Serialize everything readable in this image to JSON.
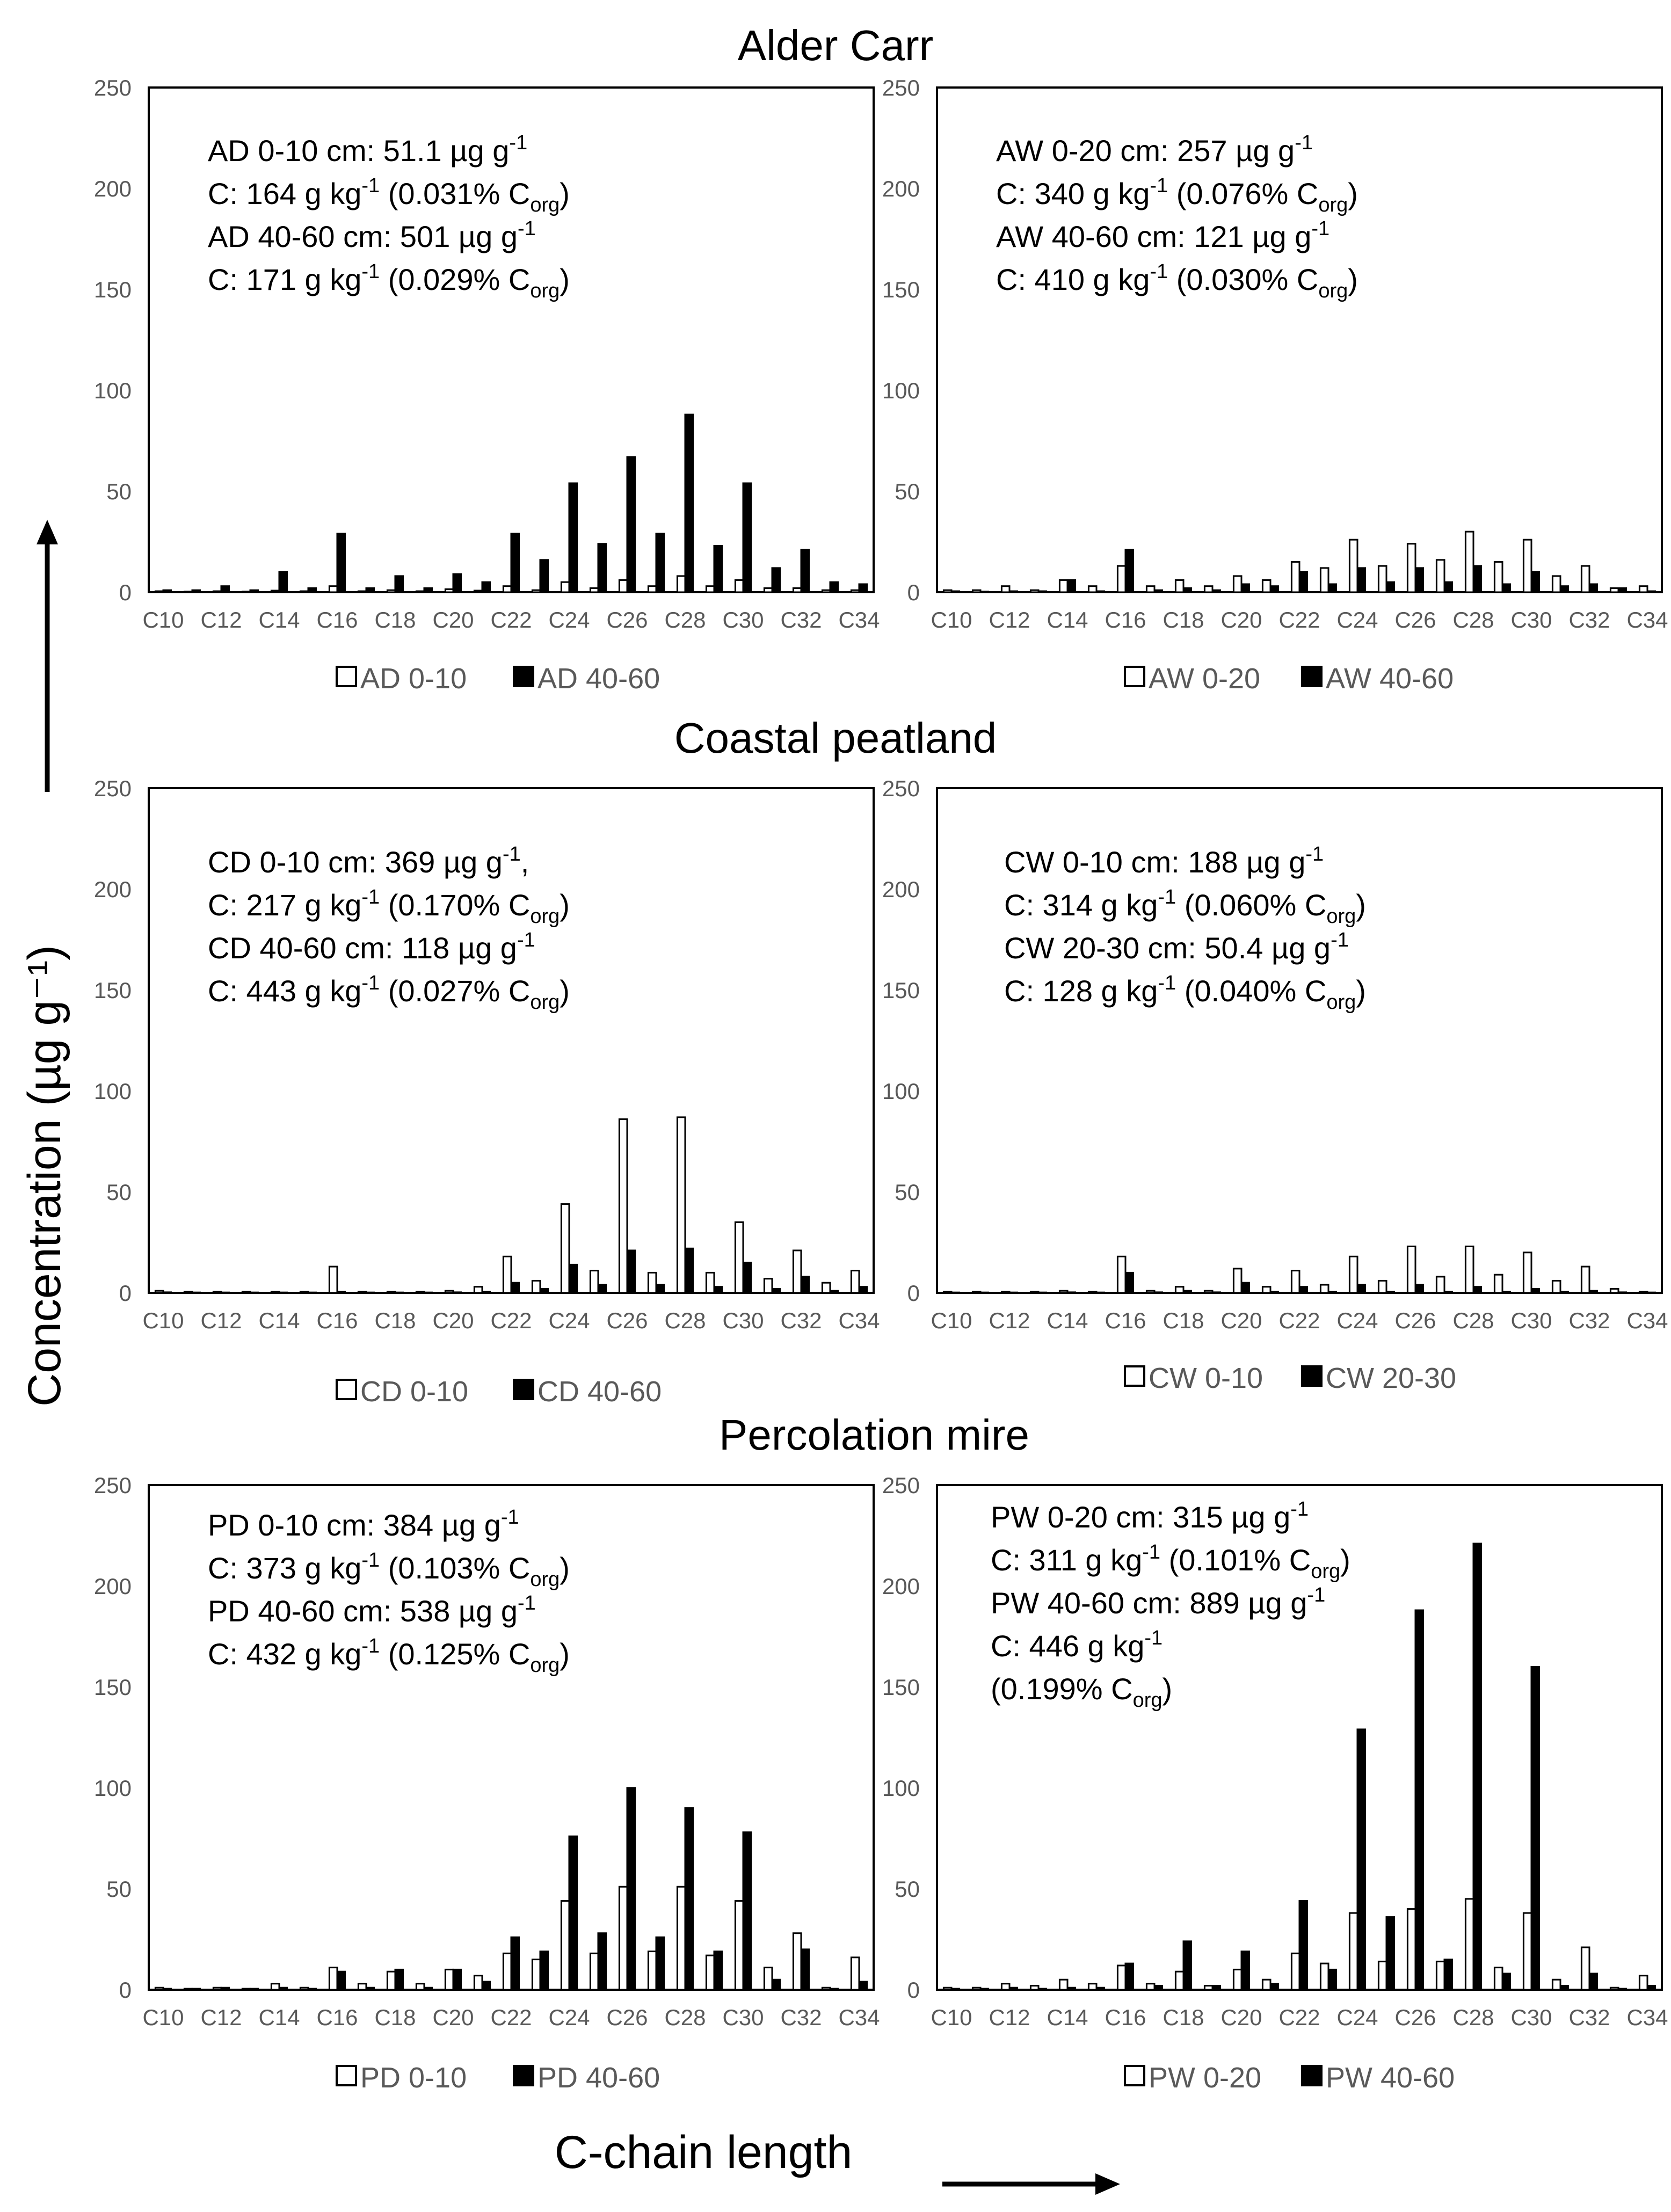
{
  "figure": {
    "section_titles": [
      "Alder Carr",
      "Coastal peatland",
      "Percolation mire"
    ],
    "ylabel": "Concentration (µg g⁻¹)",
    "xlabel": "C-chain length"
  },
  "chart_data": [
    {
      "type": "bar",
      "panel": "AD",
      "section": "Alder Carr",
      "categories": [
        "C10",
        "C11",
        "C12",
        "C13",
        "C14",
        "C15",
        "C16",
        "C17",
        "C18",
        "C19",
        "C20",
        "C21",
        "C22",
        "C23",
        "C24",
        "C25",
        "C26",
        "C27",
        "C28",
        "C29",
        "C30",
        "C31",
        "C32",
        "C33",
        "C34"
      ],
      "tick_labels": [
        "C10",
        "C12",
        "C14",
        "C16",
        "C18",
        "C20",
        "C22",
        "C24",
        "C26",
        "C28",
        "C30",
        "C32",
        "C34"
      ],
      "ylim": [
        0,
        250
      ],
      "yticks": [
        0,
        50,
        100,
        150,
        200,
        250
      ],
      "series": [
        {
          "name": "AD 0-10",
          "style": "open",
          "values": [
            0.5,
            0.3,
            0.5,
            0.3,
            0.8,
            0.5,
            3,
            0.5,
            1,
            0.5,
            1.5,
            0.8,
            3,
            1,
            5,
            2,
            6,
            3,
            8,
            3,
            6,
            2,
            2,
            1,
            1
          ]
        },
        {
          "name": "AD 40-60",
          "style": "filled",
          "values": [
            1,
            1,
            3,
            1,
            10,
            2,
            29,
            2,
            8,
            2,
            9,
            5,
            29,
            16,
            54,
            24,
            67,
            29,
            88,
            23,
            54,
            12,
            21,
            5,
            4
          ]
        }
      ],
      "annotation": [
        {
          "text": "AD 0-10 cm: 51.1 µg g",
          "sup": "-1"
        },
        {
          "text": "C: 164 g kg",
          "sup": "-1",
          "rest": " (0.031% C",
          "sub": "org",
          "end": ")"
        },
        {
          "text": "AD 40-60 cm: 501 µg g",
          "sup": "-1"
        },
        {
          "text": "C: 171 g kg",
          "sup": "-1",
          "rest": " (0.029% C",
          "sub": "org",
          "end": ")"
        }
      ]
    },
    {
      "type": "bar",
      "panel": "AW",
      "section": "Alder Carr",
      "categories": [
        "C10",
        "C11",
        "C12",
        "C13",
        "C14",
        "C15",
        "C16",
        "C17",
        "C18",
        "C19",
        "C20",
        "C21",
        "C22",
        "C23",
        "C24",
        "C25",
        "C26",
        "C27",
        "C28",
        "C29",
        "C30",
        "C31",
        "C32",
        "C33",
        "C34"
      ],
      "tick_labels": [
        "C10",
        "C12",
        "C14",
        "C16",
        "C18",
        "C20",
        "C22",
        "C24",
        "C26",
        "C28",
        "C30",
        "C32",
        "C34"
      ],
      "ylim": [
        0,
        250
      ],
      "yticks": [
        0,
        50,
        100,
        150,
        200,
        250
      ],
      "series": [
        {
          "name": "AW 0-20",
          "style": "open",
          "values": [
            1,
            1,
            3,
            1,
            6,
            3,
            13,
            3,
            6,
            3,
            8,
            6,
            15,
            12,
            26,
            13,
            24,
            16,
            30,
            15,
            26,
            8,
            13,
            2,
            3
          ]
        },
        {
          "name": "AW 40-60",
          "style": "filled",
          "values": [
            0.5,
            0.3,
            0.5,
            0.5,
            6,
            0.5,
            21,
            1,
            2,
            1,
            4,
            3,
            10,
            4,
            12,
            5,
            12,
            5,
            13,
            4,
            10,
            3,
            4,
            2,
            0.5
          ]
        }
      ],
      "annotation": [
        {
          "text": "AW 0-20 cm: 257 µg g",
          "sup": "-1"
        },
        {
          "text": "C: 340 g kg",
          "sup": "-1",
          "rest": " (0.076% C",
          "sub": "org",
          "end": ")"
        },
        {
          "text": "AW 40-60 cm: 121 µg g",
          "sup": "-1"
        },
        {
          "text": "C: 410 g kg",
          "sup": "-1",
          "rest": " (0.030% C",
          "sub": "org",
          "end": ")"
        }
      ]
    },
    {
      "type": "bar",
      "panel": "CD",
      "section": "Coastal peatland",
      "categories": [
        "C10",
        "C11",
        "C12",
        "C13",
        "C14",
        "C15",
        "C16",
        "C17",
        "C18",
        "C19",
        "C20",
        "C21",
        "C22",
        "C23",
        "C24",
        "C25",
        "C26",
        "C27",
        "C28",
        "C29",
        "C30",
        "C31",
        "C32",
        "C33",
        "C34"
      ],
      "tick_labels": [
        "C10",
        "C12",
        "C14",
        "C16",
        "C18",
        "C20",
        "C22",
        "C24",
        "C26",
        "C28",
        "C30",
        "C32",
        "C34"
      ],
      "ylim": [
        0,
        250
      ],
      "yticks": [
        0,
        50,
        100,
        150,
        200,
        250
      ],
      "series": [
        {
          "name": "CD 0-10",
          "style": "open",
          "values": [
            1,
            0.5,
            0.5,
            0.5,
            0.5,
            0.5,
            13,
            0.5,
            0.5,
            0.5,
            1,
            3,
            18,
            6,
            44,
            11,
            86,
            10,
            87,
            10,
            35,
            7,
            21,
            5,
            11
          ]
        },
        {
          "name": "CD 40-60",
          "style": "filled",
          "values": [
            0.3,
            0.2,
            0.2,
            0.2,
            0.2,
            0.2,
            0.5,
            0.2,
            0.2,
            0.2,
            0.3,
            0.5,
            5,
            2,
            14,
            4,
            21,
            4,
            22,
            3,
            15,
            2,
            8,
            1,
            3
          ]
        }
      ],
      "annotation": [
        {
          "text": "CD 0-10 cm: 369 µg g",
          "sup": "-1",
          "rest": ","
        },
        {
          "text": "C: 217 g kg",
          "sup": "-1",
          "rest": " (0.170% C",
          "sub": "org",
          "end": ")"
        },
        {
          "text": "CD 40-60 cm: 118 µg g",
          "sup": "-1"
        },
        {
          "text": "C: 443 g kg",
          "sup": "-1",
          "rest": " (0.027% C",
          "sub": "org",
          "end": ")"
        }
      ]
    },
    {
      "type": "bar",
      "panel": "CW",
      "section": "Coastal peatland",
      "categories": [
        "C10",
        "C11",
        "C12",
        "C13",
        "C14",
        "C15",
        "C16",
        "C17",
        "C18",
        "C19",
        "C20",
        "C21",
        "C22",
        "C23",
        "C24",
        "C25",
        "C26",
        "C27",
        "C28",
        "C29",
        "C30",
        "C31",
        "C32",
        "C33",
        "C34"
      ],
      "tick_labels": [
        "C10",
        "C12",
        "C14",
        "C16",
        "C18",
        "C20",
        "C22",
        "C24",
        "C26",
        "C28",
        "C30",
        "C32",
        "C34"
      ],
      "ylim": [
        0,
        250
      ],
      "yticks": [
        0,
        50,
        100,
        150,
        200,
        250
      ],
      "series": [
        {
          "name": "CW 0-10",
          "style": "open",
          "values": [
            0.5,
            0.5,
            0.5,
            0.5,
            1,
            0.5,
            18,
            1,
            3,
            1,
            12,
            3,
            11,
            4,
            18,
            6,
            23,
            8,
            23,
            9,
            20,
            6,
            13,
            2,
            0.5
          ]
        },
        {
          "name": "CW 20-30",
          "style": "filled",
          "values": [
            0.2,
            0.2,
            0.2,
            0.2,
            0.3,
            0.2,
            10,
            0.3,
            1,
            0.3,
            5,
            0.5,
            3,
            0.5,
            4,
            0.5,
            4,
            0.5,
            3,
            0.5,
            2,
            0.5,
            1,
            0.3,
            0.2
          ]
        }
      ],
      "annotation": [
        {
          "text": "CW 0-10 cm: 188 µg g",
          "sup": "-1"
        },
        {
          "text": "C: 314 g kg",
          "sup": "-1",
          "rest": " (0.060% C",
          "sub": "org",
          "end": ")"
        },
        {
          "text": "CW 20-30 cm: 50.4 µg g",
          "sup": "-1"
        },
        {
          "text": "C: 128 g kg",
          "sup": "-1",
          "rest": " (0.040% C",
          "sub": "org",
          "end": ")"
        }
      ]
    },
    {
      "type": "bar",
      "panel": "PD",
      "section": "Percolation mire",
      "categories": [
        "C10",
        "C11",
        "C12",
        "C13",
        "C14",
        "C15",
        "C16",
        "C17",
        "C18",
        "C19",
        "C20",
        "C21",
        "C22",
        "C23",
        "C24",
        "C25",
        "C26",
        "C27",
        "C28",
        "C29",
        "C30",
        "C31",
        "C32",
        "C33",
        "C34"
      ],
      "tick_labels": [
        "C10",
        "C12",
        "C14",
        "C16",
        "C18",
        "C20",
        "C22",
        "C24",
        "C26",
        "C28",
        "C30",
        "C32",
        "C34"
      ],
      "ylim": [
        0,
        250
      ],
      "yticks": [
        0,
        50,
        100,
        150,
        200,
        250
      ],
      "series": [
        {
          "name": "PD 0-10",
          "style": "open",
          "values": [
            1,
            0.5,
            1,
            0.5,
            3,
            1,
            11,
            3,
            9,
            3,
            10,
            7,
            18,
            15,
            44,
            18,
            51,
            19,
            51,
            17,
            44,
            11,
            28,
            1,
            16
          ]
        },
        {
          "name": "PD 40-60",
          "style": "filled",
          "values": [
            0.5,
            0.5,
            1,
            0.5,
            1,
            0.5,
            9,
            1,
            10,
            1,
            10,
            4,
            26,
            19,
            76,
            28,
            100,
            26,
            90,
            19,
            78,
            5,
            20,
            0.5,
            4
          ]
        }
      ],
      "annotation": [
        {
          "text": "PD 0-10 cm: 384 µg g",
          "sup": "-1"
        },
        {
          "text": "C: 373 g kg",
          "sup": "-1",
          "rest": " (0.103% C",
          "sub": "org",
          "end": ")"
        },
        {
          "text": "PD 40-60 cm: 538 µg g",
          "sup": "-1"
        },
        {
          "text": "C: 432 g kg",
          "sup": "-1",
          "rest": " (0.125% C",
          "sub": "org",
          "end": ")"
        }
      ]
    },
    {
      "type": "bar",
      "panel": "PW",
      "section": "Percolation mire",
      "categories": [
        "C10",
        "C11",
        "C12",
        "C13",
        "C14",
        "C15",
        "C16",
        "C17",
        "C18",
        "C19",
        "C20",
        "C21",
        "C22",
        "C23",
        "C24",
        "C25",
        "C26",
        "C27",
        "C28",
        "C29",
        "C30",
        "C31",
        "C32",
        "C33",
        "C34"
      ],
      "tick_labels": [
        "C10",
        "C12",
        "C14",
        "C16",
        "C18",
        "C20",
        "C22",
        "C24",
        "C26",
        "C28",
        "C30",
        "C32",
        "C34"
      ],
      "ylim": [
        0,
        250
      ],
      "yticks": [
        0,
        50,
        100,
        150,
        200,
        250
      ],
      "series": [
        {
          "name": "PW 0-20",
          "style": "open",
          "values": [
            1,
            1,
            3,
            2,
            5,
            3,
            12,
            3,
            9,
            2,
            10,
            5,
            18,
            13,
            38,
            14,
            40,
            14,
            45,
            11,
            38,
            5,
            21,
            1,
            7
          ]
        },
        {
          "name": "PW 40-60",
          "style": "filled",
          "values": [
            0.5,
            0.5,
            1,
            0.5,
            1,
            1,
            13,
            2,
            24,
            2,
            19,
            3,
            44,
            10,
            129,
            36,
            188,
            15,
            221,
            8,
            160,
            2,
            8,
            0.5,
            2
          ]
        }
      ],
      "annotation": [
        {
          "text": "PW 0-20 cm: 315 µg g",
          "sup": "-1"
        },
        {
          "text": "C: 311 g kg",
          "sup": "-1",
          "rest": " (0.101% C",
          "sub": "org",
          "end": ")"
        },
        {
          "text": "PW 40-60 cm: 889 µg g",
          "sup": "-1"
        },
        {
          "text": "C: 446 g kg",
          "sup": "-1"
        },
        {
          "text": "(0.199% C",
          "sub": "org",
          "end": ")"
        }
      ]
    }
  ]
}
